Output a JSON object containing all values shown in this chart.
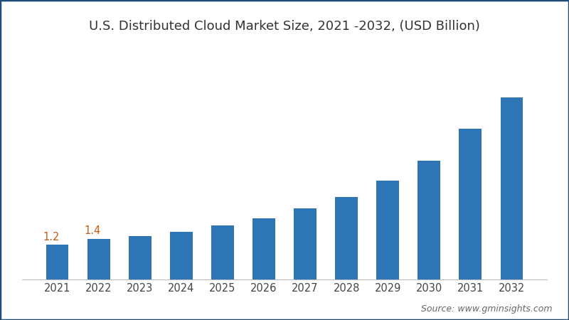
{
  "title": "U.S. Distributed Cloud Market Size, 2021 -2032, (USD Billion)",
  "categories": [
    2021,
    2022,
    2023,
    2024,
    2025,
    2026,
    2027,
    2028,
    2029,
    2030,
    2031,
    2032
  ],
  "values": [
    1.2,
    1.4,
    1.5,
    1.65,
    1.85,
    2.1,
    2.45,
    2.85,
    3.4,
    4.1,
    5.2,
    6.3
  ],
  "bar_color": "#2E75B6",
  "label_values": {
    "2021": "1.2",
    "2022": "1.4"
  },
  "label_color": "#C55A11",
  "background_color": "#FFFFFF",
  "border_color": "#1F4E79",
  "source_text": "Source: www.gminsights.com",
  "title_fontsize": 13,
  "source_fontsize": 9,
  "tick_fontsize": 10.5,
  "ylim": [
    0,
    8.0
  ],
  "bar_width": 0.55
}
